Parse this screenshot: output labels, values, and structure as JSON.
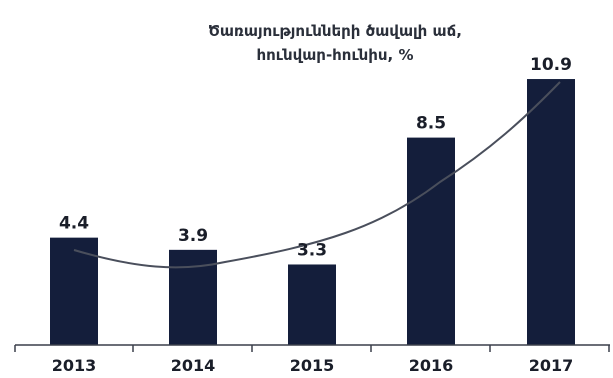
{
  "chart_data": {
    "type": "bar",
    "title_lines": [
      "Ծառայությունների ծավալի աճ,",
      "հունվար-հունիս, %"
    ],
    "categories": [
      "2013",
      "2014",
      "2015",
      "2016",
      "2017"
    ],
    "values": [
      4.4,
      3.9,
      3.3,
      8.5,
      10.9
    ],
    "value_labels": [
      "4.4",
      "3.9",
      "3.3",
      "8.5",
      "10.9"
    ],
    "xlabel": "",
    "ylabel": "",
    "ylim": [
      0,
      12.5
    ],
    "grid": false,
    "trendline": true
  },
  "colors": {
    "bar": "#141e3b",
    "trend": "#4a4f5c",
    "axis": "#3a3f4a"
  }
}
